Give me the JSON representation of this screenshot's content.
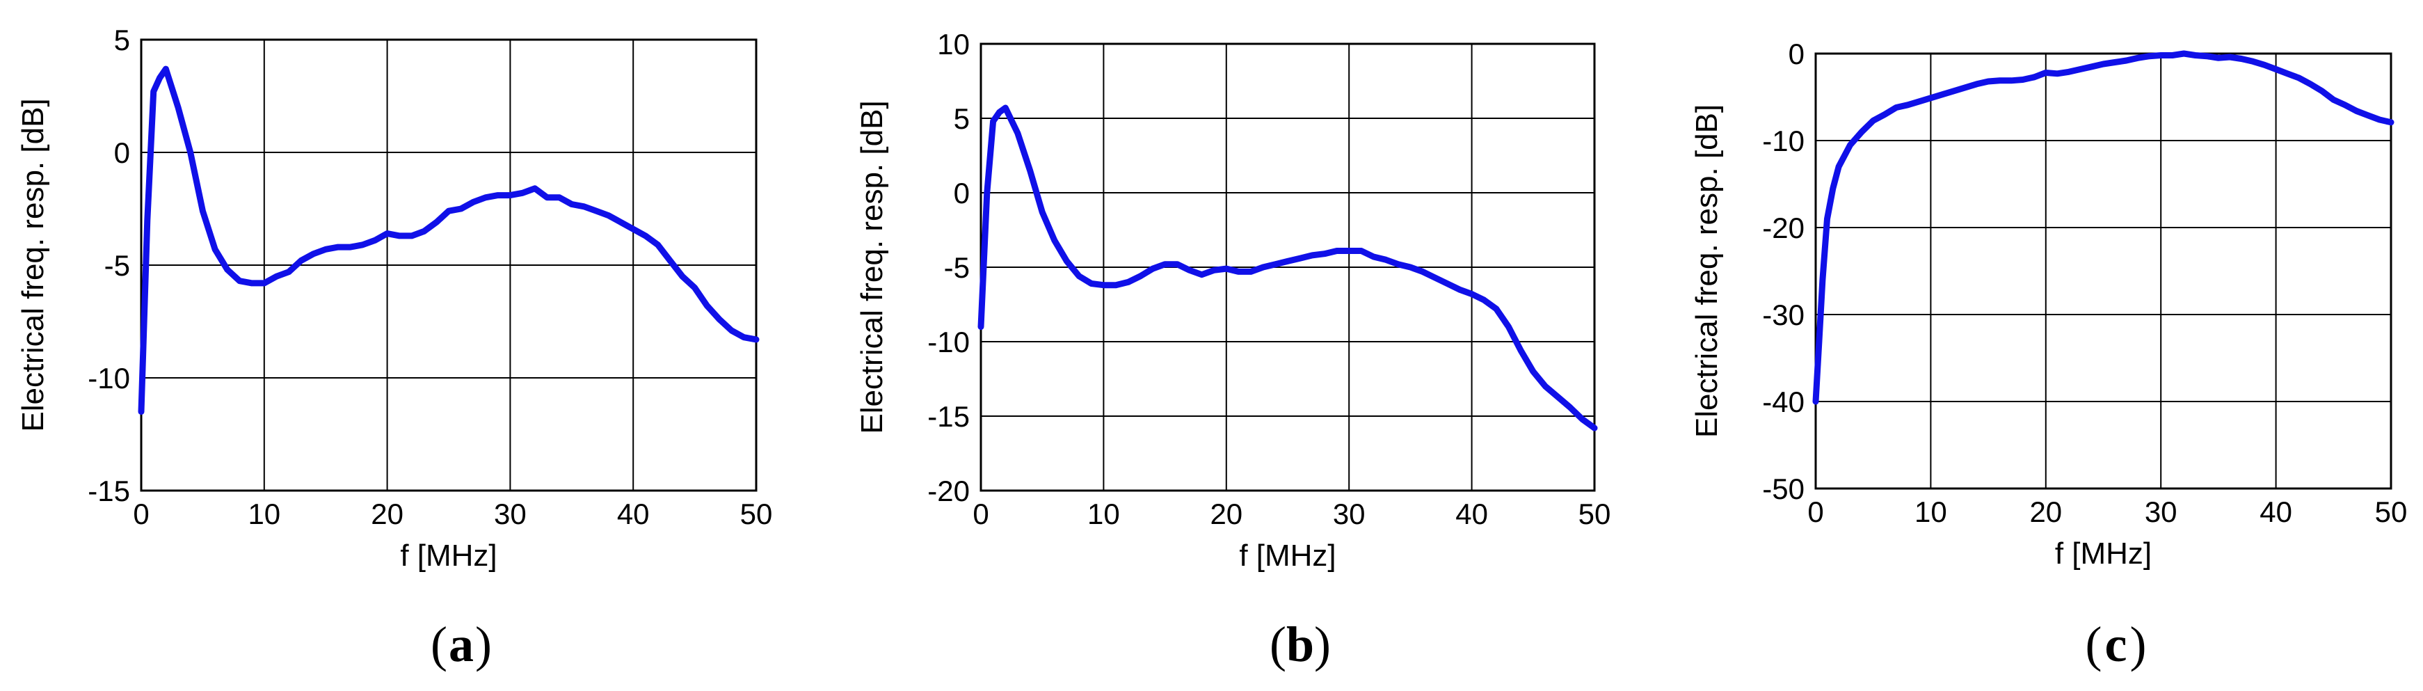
{
  "colors": {
    "series": "#1010e8",
    "axes": "#000000",
    "background": "#ffffff"
  },
  "chart_data": [
    {
      "id": "a",
      "type": "line",
      "panel_label": "a",
      "xlabel": "f [MHz]",
      "ylabel": "Electrical freq. resp. [dB]",
      "xlim": [
        0,
        50
      ],
      "ylim": [
        -15,
        5
      ],
      "xticks": [
        0,
        10,
        20,
        30,
        40,
        50
      ],
      "yticks": [
        -15,
        -10,
        -5,
        0,
        5
      ],
      "grid": true,
      "series": [
        {
          "x": [
            0,
            0.5,
            1,
            1.5,
            2,
            3,
            4,
            5,
            6,
            7,
            8,
            9,
            10,
            11,
            12,
            13,
            14,
            15,
            16,
            17,
            18,
            19,
            20,
            21,
            22,
            23,
            24,
            25,
            26,
            27,
            28,
            29,
            30,
            31,
            32,
            33,
            34,
            35,
            36,
            37,
            38,
            39,
            40,
            41,
            42,
            43,
            44,
            45,
            46,
            47,
            48,
            49,
            50
          ],
          "y": [
            -11.5,
            -3,
            2.7,
            3.3,
            3.7,
            2,
            0,
            -2.6,
            -4.3,
            -5.2,
            -5.7,
            -5.8,
            -5.8,
            -5.5,
            -5.3,
            -4.8,
            -4.5,
            -4.3,
            -4.2,
            -4.2,
            -4.1,
            -3.9,
            -3.6,
            -3.7,
            -3.7,
            -3.5,
            -3.1,
            -2.6,
            -2.5,
            -2.2,
            -2,
            -1.9,
            -1.9,
            -1.8,
            -1.6,
            -2,
            -2,
            -2.3,
            -2.4,
            -2.6,
            -2.8,
            -3.1,
            -3.4,
            -3.7,
            -4.1,
            -4.8,
            -5.5,
            -6,
            -6.8,
            -7.4,
            -7.9,
            -8.2,
            -8.3
          ]
        }
      ]
    },
    {
      "id": "b",
      "type": "line",
      "panel_label": "b",
      "xlabel": "f [MHz]",
      "ylabel": "Electrical freq. resp. [dB]",
      "xlim": [
        0,
        50
      ],
      "ylim": [
        -20,
        10
      ],
      "xticks": [
        0,
        10,
        20,
        30,
        40,
        50
      ],
      "yticks": [
        -20,
        -15,
        -10,
        -5,
        0,
        5,
        10
      ],
      "grid": true,
      "series": [
        {
          "x": [
            0,
            0.5,
            1,
            1.5,
            2,
            3,
            4,
            5,
            6,
            7,
            8,
            9,
            10,
            11,
            12,
            13,
            14,
            15,
            16,
            17,
            18,
            19,
            20,
            21,
            22,
            23,
            24,
            25,
            26,
            27,
            28,
            29,
            30,
            31,
            32,
            33,
            34,
            35,
            36,
            37,
            38,
            39,
            40,
            41,
            42,
            43,
            44,
            45,
            46,
            47,
            48,
            49,
            50
          ],
          "y": [
            -9,
            0,
            4.8,
            5.4,
            5.7,
            4,
            1.5,
            -1.3,
            -3.2,
            -4.6,
            -5.6,
            -6.1,
            -6.2,
            -6.2,
            -6,
            -5.6,
            -5.1,
            -4.8,
            -4.8,
            -5.2,
            -5.5,
            -5.2,
            -5.1,
            -5.3,
            -5.3,
            -5,
            -4.8,
            -4.6,
            -4.4,
            -4.2,
            -4.1,
            -3.9,
            -3.9,
            -3.9,
            -4.3,
            -4.5,
            -4.8,
            -5,
            -5.3,
            -5.7,
            -6.1,
            -6.5,
            -6.8,
            -7.2,
            -7.8,
            -9,
            -10.6,
            -12,
            -13,
            -13.7,
            -14.4,
            -15.2,
            -15.8
          ]
        }
      ]
    },
    {
      "id": "c",
      "type": "line",
      "panel_label": "c",
      "xlabel": "f [MHz]",
      "ylabel": "Electrical freq. resp. [dB]",
      "xlim": [
        0,
        50
      ],
      "ylim": [
        -50,
        0
      ],
      "xticks": [
        0,
        10,
        20,
        30,
        40,
        50
      ],
      "yticks": [
        -50,
        -40,
        -30,
        -20,
        -10,
        0
      ],
      "grid": true,
      "series": [
        {
          "x": [
            0,
            0.3,
            0.6,
            1,
            1.5,
            2,
            3,
            4,
            5,
            6,
            7,
            8,
            9,
            10,
            11,
            12,
            13,
            14,
            15,
            16,
            17,
            18,
            19,
            20,
            21,
            22,
            23,
            24,
            25,
            26,
            27,
            28,
            29,
            30,
            31,
            32,
            33,
            34,
            35,
            36,
            37,
            38,
            39,
            40,
            41,
            42,
            43,
            44,
            45,
            46,
            47,
            48,
            49,
            50
          ],
          "y": [
            -40,
            -33,
            -26,
            -19,
            -15.5,
            -13,
            -10.5,
            -9,
            -7.7,
            -7,
            -6.2,
            -5.9,
            -5.5,
            -5.1,
            -4.7,
            -4.3,
            -3.9,
            -3.5,
            -3.2,
            -3.1,
            -3.1,
            -3,
            -2.7,
            -2.2,
            -2.3,
            -2.1,
            -1.8,
            -1.5,
            -1.2,
            -1,
            -0.8,
            -0.5,
            -0.3,
            -0.2,
            -0.2,
            0,
            -0.2,
            -0.3,
            -0.5,
            -0.4,
            -0.6,
            -0.9,
            -1.3,
            -1.8,
            -2.3,
            -2.8,
            -3.5,
            -4.3,
            -5.3,
            -5.9,
            -6.6,
            -7.1,
            -7.6,
            -7.9
          ]
        }
      ]
    }
  ]
}
